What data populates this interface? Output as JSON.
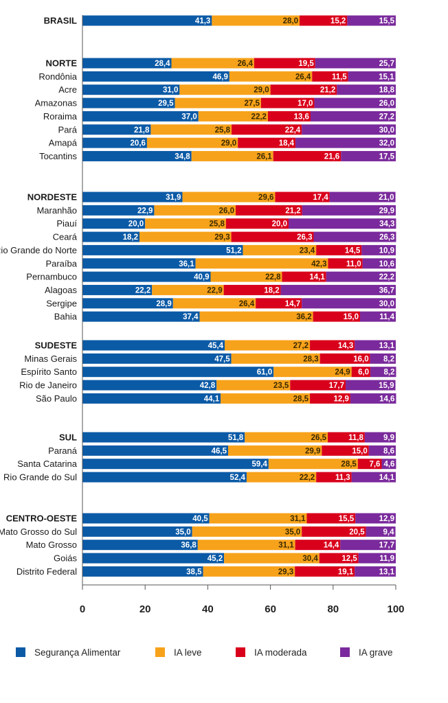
{
  "chart_data": {
    "type": "bar",
    "orientation": "horizontal",
    "stacked": true,
    "xlim": [
      0,
      100
    ],
    "xticks": [
      "0",
      "20",
      "40",
      "60",
      "80",
      "100"
    ],
    "colors": [
      "#0b5aa6",
      "#f7a21b",
      "#d9001b",
      "#7a2a9c"
    ],
    "series": [
      {
        "name": "Segurança Alimentar",
        "color": "#0b5aa6"
      },
      {
        "name": "IA leve",
        "color": "#f7a21b"
      },
      {
        "name": "IA moderada",
        "color": "#d9001b"
      },
      {
        "name": "IA grave",
        "color": "#7a2a9c"
      }
    ],
    "groups": [
      {
        "region": "BRASIL",
        "values": [
          "41,3",
          "28,0",
          "15,2",
          "15,5"
        ],
        "rows": []
      },
      {
        "region": "NORTE",
        "values": [
          "28,4",
          "26,4",
          "19,5",
          "25,7"
        ],
        "rows": [
          {
            "label": "Rondônia",
            "values": [
              "46,9",
              "26,4",
              "11,5",
              "15,1"
            ]
          },
          {
            "label": "Acre",
            "values": [
              "31,0",
              "29,0",
              "21,2",
              "18,8"
            ]
          },
          {
            "label": "Amazonas",
            "values": [
              "29,5",
              "27,5",
              "17,0",
              "26,0"
            ]
          },
          {
            "label": "Roraima",
            "values": [
              "37,0",
              "22,2",
              "13,6",
              "27,2"
            ]
          },
          {
            "label": "Pará",
            "values": [
              "21,8",
              "25,8",
              "22,4",
              "30,0"
            ]
          },
          {
            "label": "Amapá",
            "values": [
              "20,6",
              "29,0",
              "18,4",
              "32,0"
            ]
          },
          {
            "label": "Tocantins",
            "values": [
              "34,8",
              "26,1",
              "21,6",
              "17,5"
            ]
          }
        ]
      },
      {
        "region": "NORDESTE",
        "values": [
          "31,9",
          "29,6",
          "17,4",
          "21,0"
        ],
        "rows": [
          {
            "label": "Maranhão",
            "values": [
              "22,9",
              "26,0",
              "21,2",
              "29,9"
            ]
          },
          {
            "label": "Piauí",
            "values": [
              "20,0",
              "25,8",
              "20,0",
              "34,3"
            ]
          },
          {
            "label": "Ceará",
            "values": [
              "18,2",
              "29,3",
              "26,3",
              "26,3"
            ]
          },
          {
            "label": "Rio Grande do Norte",
            "values": [
              "51,2",
              "23,4",
              "14,5",
              "10,9"
            ]
          },
          {
            "label": "Paraíba",
            "values": [
              "36,1",
              "42,3",
              "11,0",
              "10,6"
            ]
          },
          {
            "label": "Pernambuco",
            "values": [
              "40,9",
              "22,8",
              "14,1",
              "22,2"
            ]
          },
          {
            "label": "Alagoas",
            "values": [
              "22,2",
              "22,9",
              "18,2",
              "36,7"
            ]
          },
          {
            "label": "Sergipe",
            "values": [
              "28,9",
              "26,4",
              "14,7",
              "30,0"
            ]
          },
          {
            "label": "Bahia",
            "values": [
              "37,4",
              "36,2",
              "15,0",
              "11,4"
            ]
          }
        ]
      },
      {
        "region": "SUDESTE",
        "values": [
          "45,4",
          "27,2",
          "14,3",
          "13,1"
        ],
        "rows": [
          {
            "label": "Minas Gerais",
            "values": [
              "47,5",
              "28,3",
              "16,0",
              "8,2"
            ]
          },
          {
            "label": "Espírito Santo",
            "values": [
              "61,0",
              "24,9",
              "6,0",
              "8,2"
            ]
          },
          {
            "label": "Rio de Janeiro",
            "values": [
              "42,8",
              "23,5",
              "17,7",
              "15,9"
            ]
          },
          {
            "label": "São Paulo",
            "values": [
              "44,1",
              "28,5",
              "12,9",
              "14,6"
            ]
          }
        ]
      },
      {
        "region": "SUL",
        "values": [
          "51,8",
          "26,5",
          "11,8",
          "9,9"
        ],
        "rows": [
          {
            "label": "Paraná",
            "values": [
              "46,5",
              "29,9",
              "15,0",
              "8,6"
            ]
          },
          {
            "label": "Santa Catarina",
            "values": [
              "59,4",
              "28,5",
              "7,6",
              "4,6"
            ]
          },
          {
            "label": "Rio Grande do Sul",
            "values": [
              "52,4",
              "22,2",
              "11,3",
              "14,1"
            ]
          }
        ]
      },
      {
        "region": "CENTRO-OESTE",
        "values": [
          "40,5",
          "31,1",
          "15,5",
          "12,9"
        ],
        "rows": [
          {
            "label": "Mato Grosso do Sul",
            "values": [
              "35,0",
              "35,0",
              "20,5",
              "9,4"
            ]
          },
          {
            "label": "Mato Grosso",
            "values": [
              "36,8",
              "31,1",
              "14,4",
              "17,7"
            ]
          },
          {
            "label": "Goiás",
            "values": [
              "45,2",
              "30,4",
              "12,5",
              "11,9"
            ]
          },
          {
            "label": "Distrito Federal",
            "values": [
              "38,5",
              "29,3",
              "19,1",
              "13,1"
            ]
          }
        ]
      }
    ]
  }
}
